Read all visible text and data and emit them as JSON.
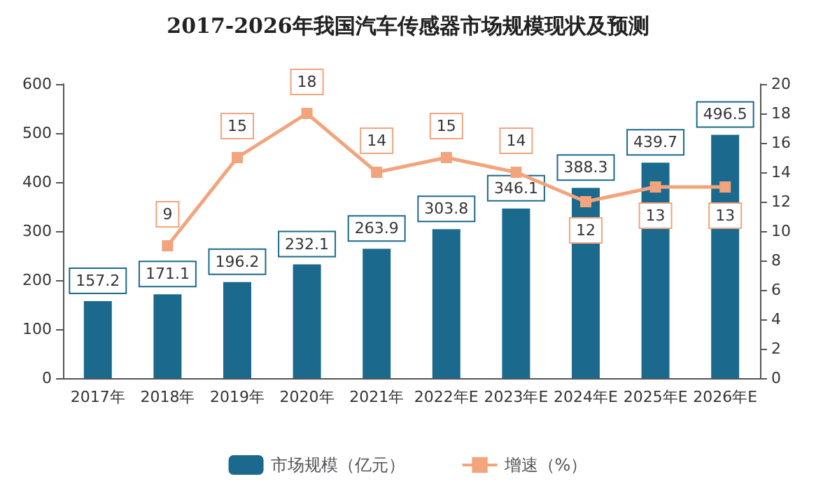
{
  "chart_data": {
    "type": "bar",
    "title": "2017-2026年我国汽车传感器市场规模现状及预测",
    "categories": [
      "2017年",
      "2018年",
      "2019年",
      "2020年",
      "2021年",
      "2022年E",
      "2023年E",
      "2024年E",
      "2025年E",
      "2026年E"
    ],
    "series": [
      {
        "name": "市场规模（亿元）",
        "color": "#1b6a8e",
        "values": [
          157.2,
          171.1,
          196.2,
          232.1,
          263.9,
          303.8,
          346.1,
          388.3,
          439.7,
          496.5
        ]
      },
      {
        "name": "增速（%）",
        "type": "line",
        "axis": "y2",
        "color": "#f2a47c",
        "marker": "square",
        "values": [
          null,
          9,
          15,
          18,
          14,
          15,
          14,
          12,
          13,
          13
        ]
      }
    ],
    "ylim": [
      0,
      600
    ],
    "yticks": [
      0,
      100,
      200,
      300,
      400,
      500,
      600
    ],
    "y2lim": [
      0,
      20
    ],
    "y2ticks": [
      0,
      2,
      4,
      6,
      8,
      10,
      12,
      14,
      16,
      18,
      20
    ],
    "data_labels": true,
    "grid": false,
    "legend": "bottom"
  }
}
